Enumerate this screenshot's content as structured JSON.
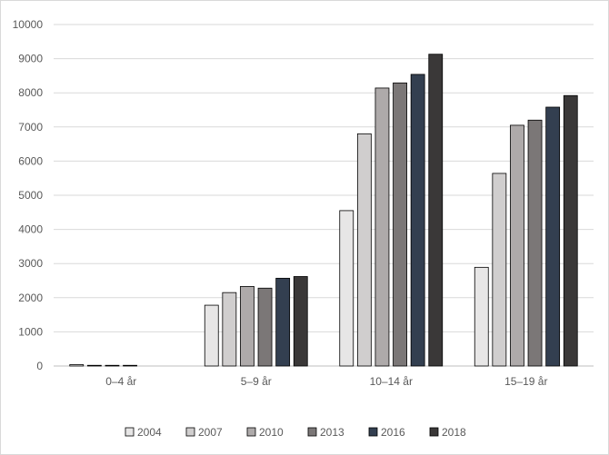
{
  "chart_data": {
    "type": "bar",
    "title": "",
    "xlabel": "",
    "ylabel": "",
    "ylim": [
      0,
      10000
    ],
    "yticks": [
      0,
      1000,
      2000,
      3000,
      4000,
      5000,
      6000,
      7000,
      8000,
      9000,
      10000
    ],
    "grid": true,
    "legend_position": "bottom",
    "categories": [
      "0–4 år",
      "5–9 år",
      "10–14 år",
      "15–19 år"
    ],
    "series": [
      {
        "name": "2004",
        "color": "#e7e6e6",
        "values": [
          40,
          1780,
          4550,
          2890
        ]
      },
      {
        "name": "2007",
        "color": "#d0cece",
        "values": [
          20,
          2150,
          6800,
          5640
        ]
      },
      {
        "name": "2010",
        "color": "#aeaaaa",
        "values": [
          20,
          2330,
          8140,
          7050
        ]
      },
      {
        "name": "2013",
        "color": "#7b7777",
        "values": [
          20,
          2280,
          8290,
          7200
        ]
      },
      {
        "name": "2016",
        "color": "#333f50",
        "values": [
          0,
          2570,
          8540,
          7580
        ]
      },
      {
        "name": "2018",
        "color": "#3a3838",
        "values": [
          0,
          2620,
          9130,
          7920
        ]
      }
    ]
  }
}
